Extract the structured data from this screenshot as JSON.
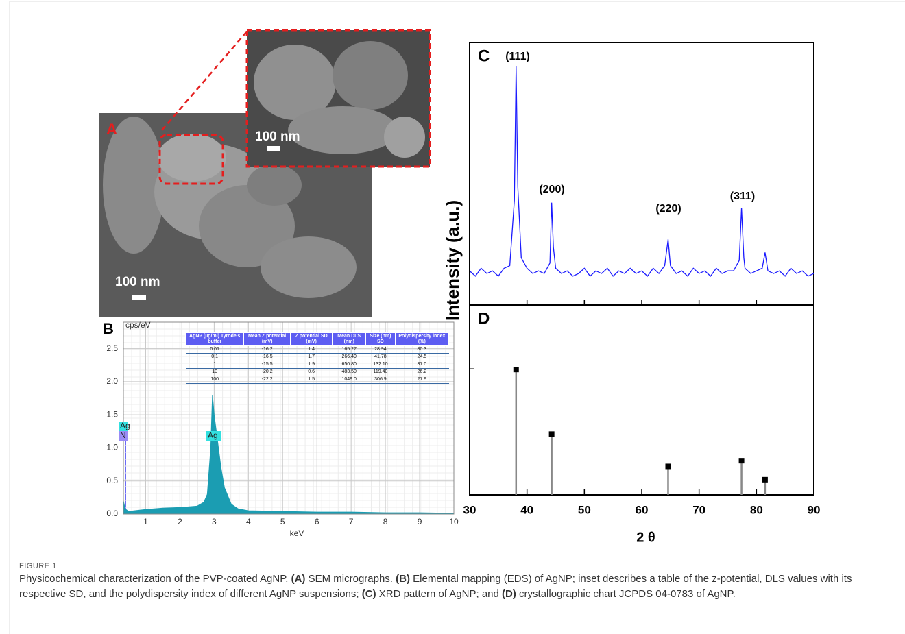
{
  "panels": {
    "a": {
      "label": "A",
      "scale": "100 nm",
      "inset_scale": "100 nm"
    }
  },
  "chart_data": [
    {
      "type": "area",
      "label": "B",
      "xlabel": "keV",
      "ylabel": "cps/eV",
      "color": "#1b9db2",
      "grid": true,
      "x": [
        0.35,
        0.4,
        0.5,
        1,
        1.5,
        2,
        2.5,
        2.7,
        2.8,
        2.9,
        2.95,
        3.0,
        3.05,
        3.1,
        3.2,
        3.3,
        3.5,
        3.7,
        4,
        5,
        6,
        7,
        8,
        9,
        10
      ],
      "values": [
        0.2,
        0.08,
        0.04,
        0.07,
        0.09,
        0.1,
        0.12,
        0.18,
        0.3,
        1.0,
        1.8,
        1.5,
        1.3,
        1.1,
        0.7,
        0.4,
        0.15,
        0.08,
        0.05,
        0.04,
        0.03,
        0.03,
        0.02,
        0.02,
        0.01
      ],
      "xlim": [
        0.35,
        10
      ],
      "xticks": [
        1,
        2,
        3,
        4,
        5,
        6,
        7,
        8,
        9,
        10
      ],
      "ylim": [
        0,
        2.9
      ],
      "yticks": [
        {
          "value": 0,
          "label": "0.0"
        },
        0.5,
        {
          "value": 1,
          "label": "1.0"
        },
        1.5,
        {
          "value": 2,
          "label": "2.0"
        },
        2.5
      ],
      "annotations": [
        "Ag",
        "N",
        "Ag"
      ]
    },
    {
      "type": "line",
      "label": "C",
      "ylabel": "Intensity (a.u.)",
      "color": "#1a1aff",
      "x": [
        30,
        31,
        32,
        33,
        34,
        35,
        36,
        37,
        37.8,
        38.1,
        38.4,
        39,
        40,
        41,
        42,
        43,
        44,
        44.3,
        44.6,
        45,
        46,
        47,
        48,
        49,
        50,
        51,
        52,
        53,
        54,
        55,
        56,
        57,
        58,
        59,
        60,
        61,
        62,
        63,
        64,
        64.6,
        65,
        66,
        67,
        68,
        69,
        70,
        71,
        72,
        73,
        74,
        75,
        76,
        77,
        77.4,
        77.8,
        78,
        79,
        80,
        81,
        81.5,
        82,
        83,
        84,
        85,
        86,
        87,
        88,
        89,
        90
      ],
      "values": [
        13,
        11,
        14,
        12,
        13,
        11,
        14,
        15,
        40,
        91,
        45,
        18,
        14,
        12,
        13,
        12,
        16,
        39,
        22,
        14,
        12,
        13,
        11,
        12,
        14,
        11,
        13,
        12,
        14,
        11,
        13,
        12,
        14,
        12,
        13,
        11,
        14,
        12,
        15,
        25,
        15,
        12,
        13,
        11,
        14,
        12,
        13,
        11,
        14,
        12,
        13,
        13,
        17,
        37,
        18,
        14,
        12,
        13,
        14,
        20,
        13,
        12,
        13,
        11,
        14,
        12,
        13,
        11,
        12
      ],
      "xlim": [
        30,
        90
      ],
      "ylim": [
        0,
        100
      ],
      "annotations": [
        "(111)",
        "(200)",
        "(220)",
        "(311)"
      ]
    },
    {
      "type": "stem",
      "label": "D",
      "xlabel": "2 θ",
      "color": "#888888",
      "x": [
        38.1,
        44.3,
        64.6,
        77.4,
        81.5
      ],
      "values": [
        66,
        32,
        15,
        18,
        8
      ],
      "xlim": [
        30,
        90
      ],
      "xticks": [
        30,
        40,
        50,
        60,
        70,
        80,
        90
      ],
      "ylim": [
        0,
        100
      ]
    }
  ],
  "table": {
    "header": [
      "AgNP (µg/ml) Tyrode's buffer",
      "Mean Z potential (mV)",
      "Z potential SD (mV)",
      "Mean DLS (nm)",
      "Size (nm) SD",
      "Polydispersity index (%)"
    ],
    "rows": [
      [
        "0.01",
        "-16.2",
        "1.4",
        "165.27",
        "28.94",
        "80.3"
      ],
      [
        "0.1",
        "-16.5",
        "1.7",
        "266.40",
        "41.78",
        "24.5"
      ],
      [
        "1",
        "-15.5",
        "1.9",
        "650.80",
        "132.10",
        "37.0"
      ],
      [
        "10",
        "-20.2",
        "0.6",
        "483.50",
        "119.40",
        "26.2"
      ],
      [
        "100",
        "-22.2",
        "1.5",
        "1049.0",
        "306.9",
        "27.9"
      ]
    ]
  },
  "caption": {
    "label": "FIGURE 1",
    "parts": [
      "Physicochemical characterization of the PVP-coated AgNP.",
      "(A)",
      "SEM micrographs.",
      "(B)",
      "Elemental mapping (EDS) of AgNP; inset describes a table of the z-potential, DLS values with its respective SD, and the polydispersity index of different AgNP suspensions;",
      "(C)",
      "XRD pattern of AgNP; and",
      "(D)",
      "crystallographic chart JCPDS 04-0783 of AgNP."
    ]
  }
}
